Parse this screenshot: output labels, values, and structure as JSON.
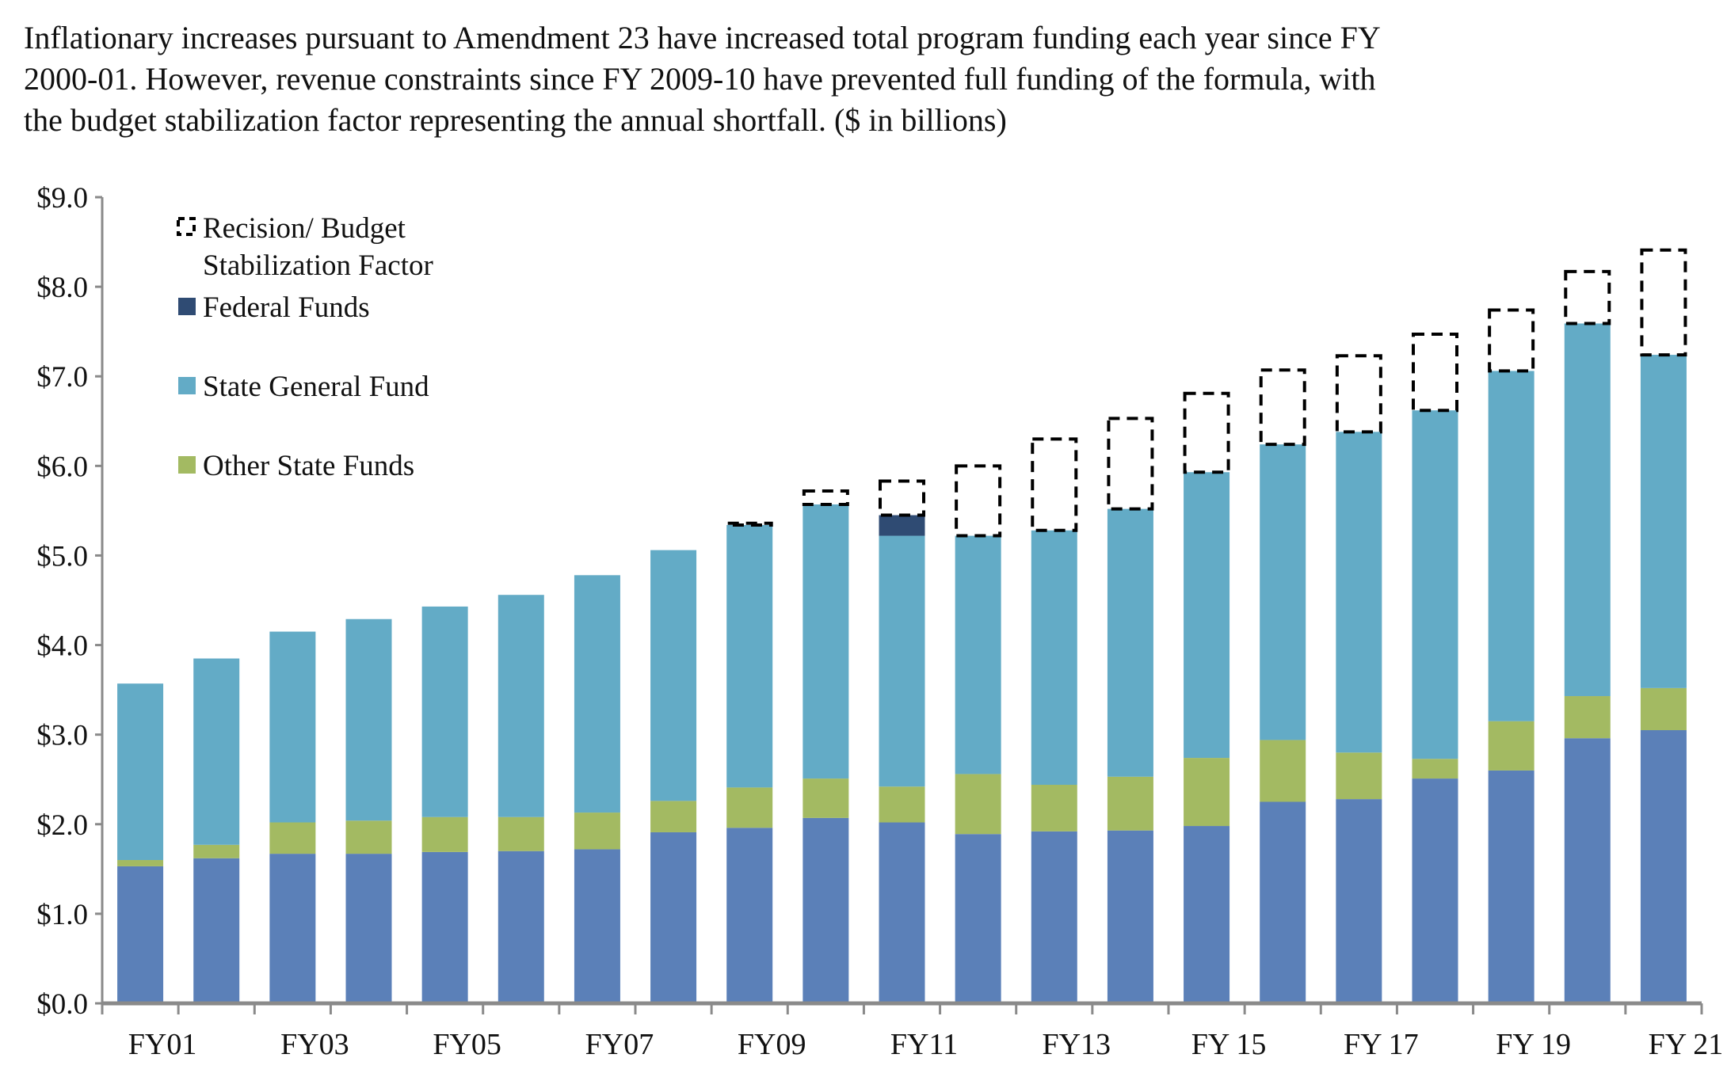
{
  "chart_data": {
    "type": "bar",
    "stacked": true,
    "title_lines": [
      "Inflationary increases pursuant to Amendment 23 have increased total program funding each year since FY",
      "2000-01. However, revenue constraints since FY 2009-10 have prevented full funding of the formula, with",
      "the budget stabilization factor representing the annual shortfall. ($ in billions)"
    ],
    "xlabel": "",
    "ylabel": "",
    "ylim": [
      0,
      9
    ],
    "y_tick_labels": [
      "$0.0",
      "$1.0",
      "$2.0",
      "$3.0",
      "$4.0",
      "$5.0",
      "$6.0",
      "$7.0",
      "$8.0",
      "$9.0"
    ],
    "x_tick_labels": [
      "FY01",
      "FY03",
      "FY05",
      "FY07",
      "FY09",
      "FY11",
      "FY13",
      "FY 15",
      "FY 17",
      "FY 19",
      "FY 21"
    ],
    "bar_count": 21,
    "grid": false,
    "legend_position": "top-left",
    "legend": [
      {
        "label_lines": [
          "Recision/ Budget",
          "Stabilization Factor"
        ],
        "series": "bsf"
      },
      {
        "label_lines": [
          "Federal Funds"
        ],
        "series": "federal"
      },
      {
        "label_lines": [
          "State General Fund"
        ],
        "series": "sgf"
      },
      {
        "label_lines": [
          "Other State Funds"
        ],
        "series": "other"
      }
    ],
    "series": [
      {
        "key": "local",
        "color": "#5b80b8",
        "style": "solid",
        "values": [
          1.53,
          1.62,
          1.67,
          1.67,
          1.69,
          1.7,
          1.72,
          1.91,
          1.96,
          2.07,
          2.02,
          1.89,
          1.92,
          1.93,
          1.98,
          2.25,
          2.28,
          2.51,
          2.6,
          2.96,
          3.05
        ]
      },
      {
        "key": "other",
        "name": "Other State Funds",
        "color": "#a3ba62",
        "style": "solid",
        "values": [
          0.07,
          0.15,
          0.35,
          0.37,
          0.39,
          0.38,
          0.41,
          0.35,
          0.45,
          0.44,
          0.4,
          0.67,
          0.52,
          0.6,
          0.76,
          0.69,
          0.52,
          0.22,
          0.55,
          0.47,
          0.47
        ]
      },
      {
        "key": "sgf",
        "name": "State General Fund",
        "color": "#63abc6",
        "style": "solid",
        "values": [
          1.97,
          2.08,
          2.13,
          2.25,
          2.35,
          2.48,
          2.65,
          2.8,
          2.93,
          3.06,
          2.8,
          2.66,
          2.84,
          2.99,
          3.19,
          3.3,
          3.58,
          3.89,
          3.91,
          4.16,
          3.72
        ]
      },
      {
        "key": "federal",
        "name": "Federal Funds",
        "color": "#2f4b73",
        "style": "solid",
        "values": [
          0,
          0,
          0,
          0,
          0,
          0,
          0,
          0,
          0,
          0,
          0.23,
          0,
          0,
          0,
          0,
          0,
          0,
          0,
          0,
          0,
          0
        ]
      },
      {
        "key": "bsf",
        "name": "Recision/ Budget Stabilization Factor",
        "color": "#000000",
        "style": "dashed-outline",
        "values": [
          0,
          0,
          0,
          0,
          0,
          0,
          0,
          0,
          0.02,
          0.15,
          0.38,
          0.78,
          1.02,
          1.01,
          0.88,
          0.83,
          0.85,
          0.85,
          0.68,
          0.58,
          1.17
        ]
      }
    ]
  }
}
